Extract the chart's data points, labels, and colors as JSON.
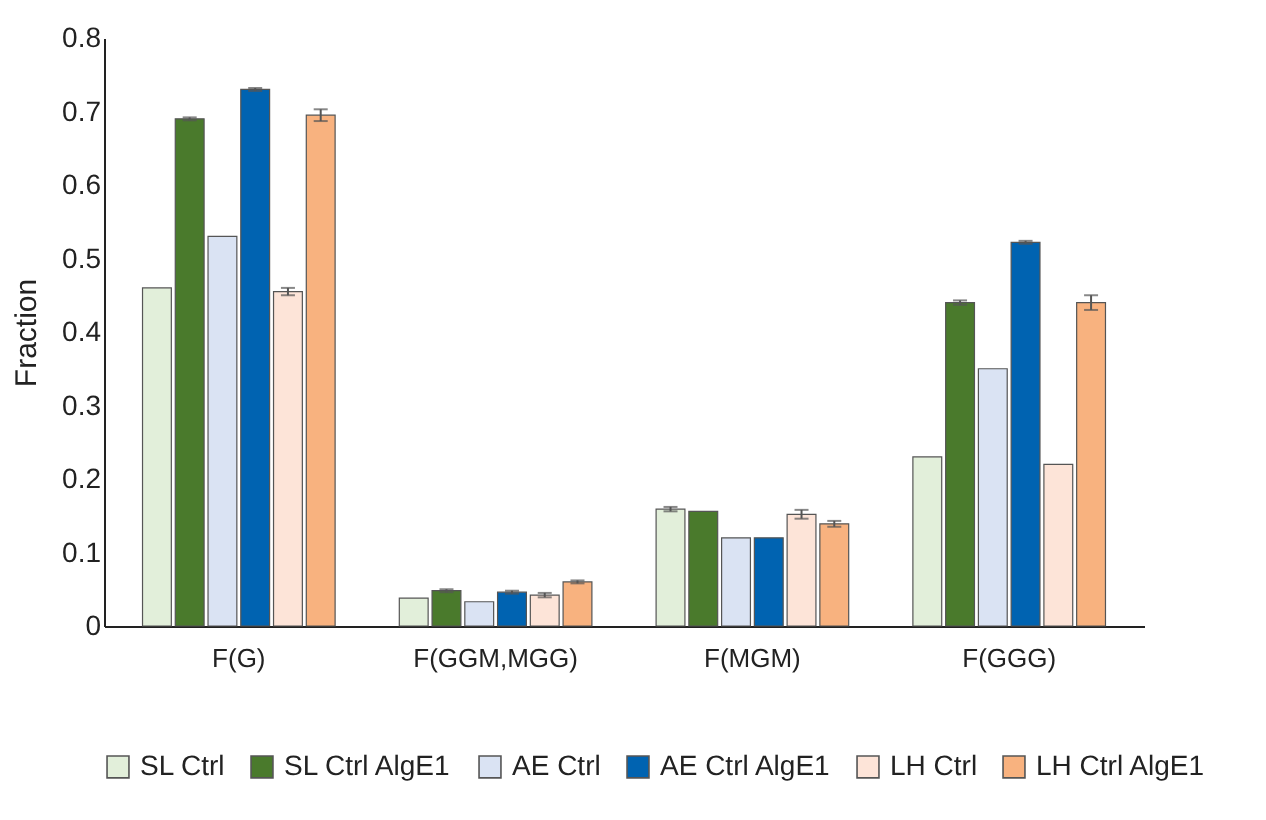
{
  "chart_data": {
    "type": "bar",
    "ylabel": "Fraction",
    "categories": [
      "F(G)",
      "F(GGM,MGG)",
      "F(MGM)",
      "F(GGG)"
    ],
    "series": [
      {
        "name": "SL Ctrl",
        "color": "#e2efda",
        "values": [
          0.46,
          0.038,
          0.159,
          0.23
        ],
        "errors": [
          null,
          null,
          0.003,
          null
        ]
      },
      {
        "name": "SL Ctrl AlgE1",
        "color": "#4a7a2c",
        "values": [
          0.69,
          0.048,
          0.156,
          0.44
        ],
        "errors": [
          0.002,
          0.002,
          null,
          0.003
        ]
      },
      {
        "name": "AE Ctrl",
        "color": "#dae3f3",
        "values": [
          0.53,
          0.033,
          0.12,
          0.35
        ],
        "errors": [
          null,
          null,
          null,
          null
        ]
      },
      {
        "name": "AE Ctrl AlgE1",
        "color": "#0063b1",
        "values": [
          0.73,
          0.046,
          0.12,
          0.522
        ],
        "errors": [
          0.002,
          0.002,
          null,
          0.002
        ]
      },
      {
        "name": "LH Ctrl",
        "color": "#fde4d8",
        "values": [
          0.455,
          0.042,
          0.152,
          0.22
        ],
        "errors": [
          0.005,
          0.003,
          0.006,
          null
        ]
      },
      {
        "name": "LH Ctrl AlgE1",
        "color": "#f8b27f",
        "values": [
          0.695,
          0.06,
          0.139,
          0.44
        ],
        "errors": [
          0.008,
          0.002,
          0.004,
          0.01
        ]
      }
    ],
    "ylim": [
      0,
      0.8
    ],
    "yticks": [
      0,
      0.1,
      0.2,
      0.3,
      0.4,
      0.5,
      0.6,
      0.7,
      0.8
    ],
    "grid": false,
    "legend": "bottom"
  }
}
